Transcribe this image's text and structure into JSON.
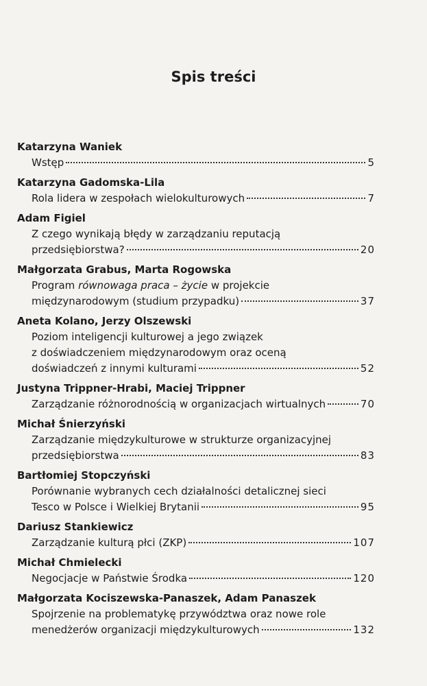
{
  "header": {
    "title": "Spis treści"
  },
  "entries": [
    {
      "author": "Katarzyna Waniek",
      "lines": [
        "Wstęp"
      ],
      "page": "5"
    },
    {
      "author": "Katarzyna Gadomska-Lila",
      "lines": [
        "Rola lidera w zespołach wielokulturowych"
      ],
      "page": "7"
    },
    {
      "author": "Adam Figiel",
      "lines": [
        "Z czego wynikają błędy w zarządzaniu reputacją",
        "przedsiębiorstwa?"
      ],
      "page": "20"
    },
    {
      "author": "Małgorzata Grabus, Marta Rogowska",
      "lines": [
        [
          {
            "text": "Program "
          },
          {
            "text": "równowaga praca – życie",
            "italic": true
          },
          {
            "text": " w projekcie"
          }
        ],
        "międzynarodowym (studium przypadku)"
      ],
      "page": "37"
    },
    {
      "author": "Aneta Kolano, Jerzy Olszewski",
      "lines": [
        "Poziom inteligencji kulturowej a jego związek",
        "z doświadczeniem międzynarodowym oraz oceną",
        "doświadczeń z innymi kulturami"
      ],
      "page": "52"
    },
    {
      "author": "Justyna Trippner-Hrabi, Maciej Trippner",
      "lines": [
        "Zarządzanie różnorodnością w organizacjach wirtualnych"
      ],
      "page": "70"
    },
    {
      "author": "Michał Śnierzyński",
      "lines": [
        "Zarządzanie międzykulturowe w strukturze organizacyjnej",
        "przedsiębiorstwa"
      ],
      "page": "83"
    },
    {
      "author": "Bartłomiej Stopczyński",
      "lines": [
        "Porównanie wybranych cech działalności detalicznej sieci",
        "Tesco w Polsce i Wielkiej Brytanii"
      ],
      "page": "95"
    },
    {
      "author": "Dariusz Stankiewicz",
      "lines": [
        "Zarządzanie kulturą płci (ZKP)"
      ],
      "page": "107"
    },
    {
      "author": "Michał Chmielecki",
      "lines": [
        "Negocjacje w Państwie Środka"
      ],
      "page": "120"
    },
    {
      "author": "Małgorzata Kociszewska-Panaszek, Adam Panaszek",
      "lines": [
        "Spojrzenie na problematykę przywództwa oraz nowe role",
        "menedżerów organizacji międzykulturowych"
      ],
      "page": "132"
    }
  ]
}
